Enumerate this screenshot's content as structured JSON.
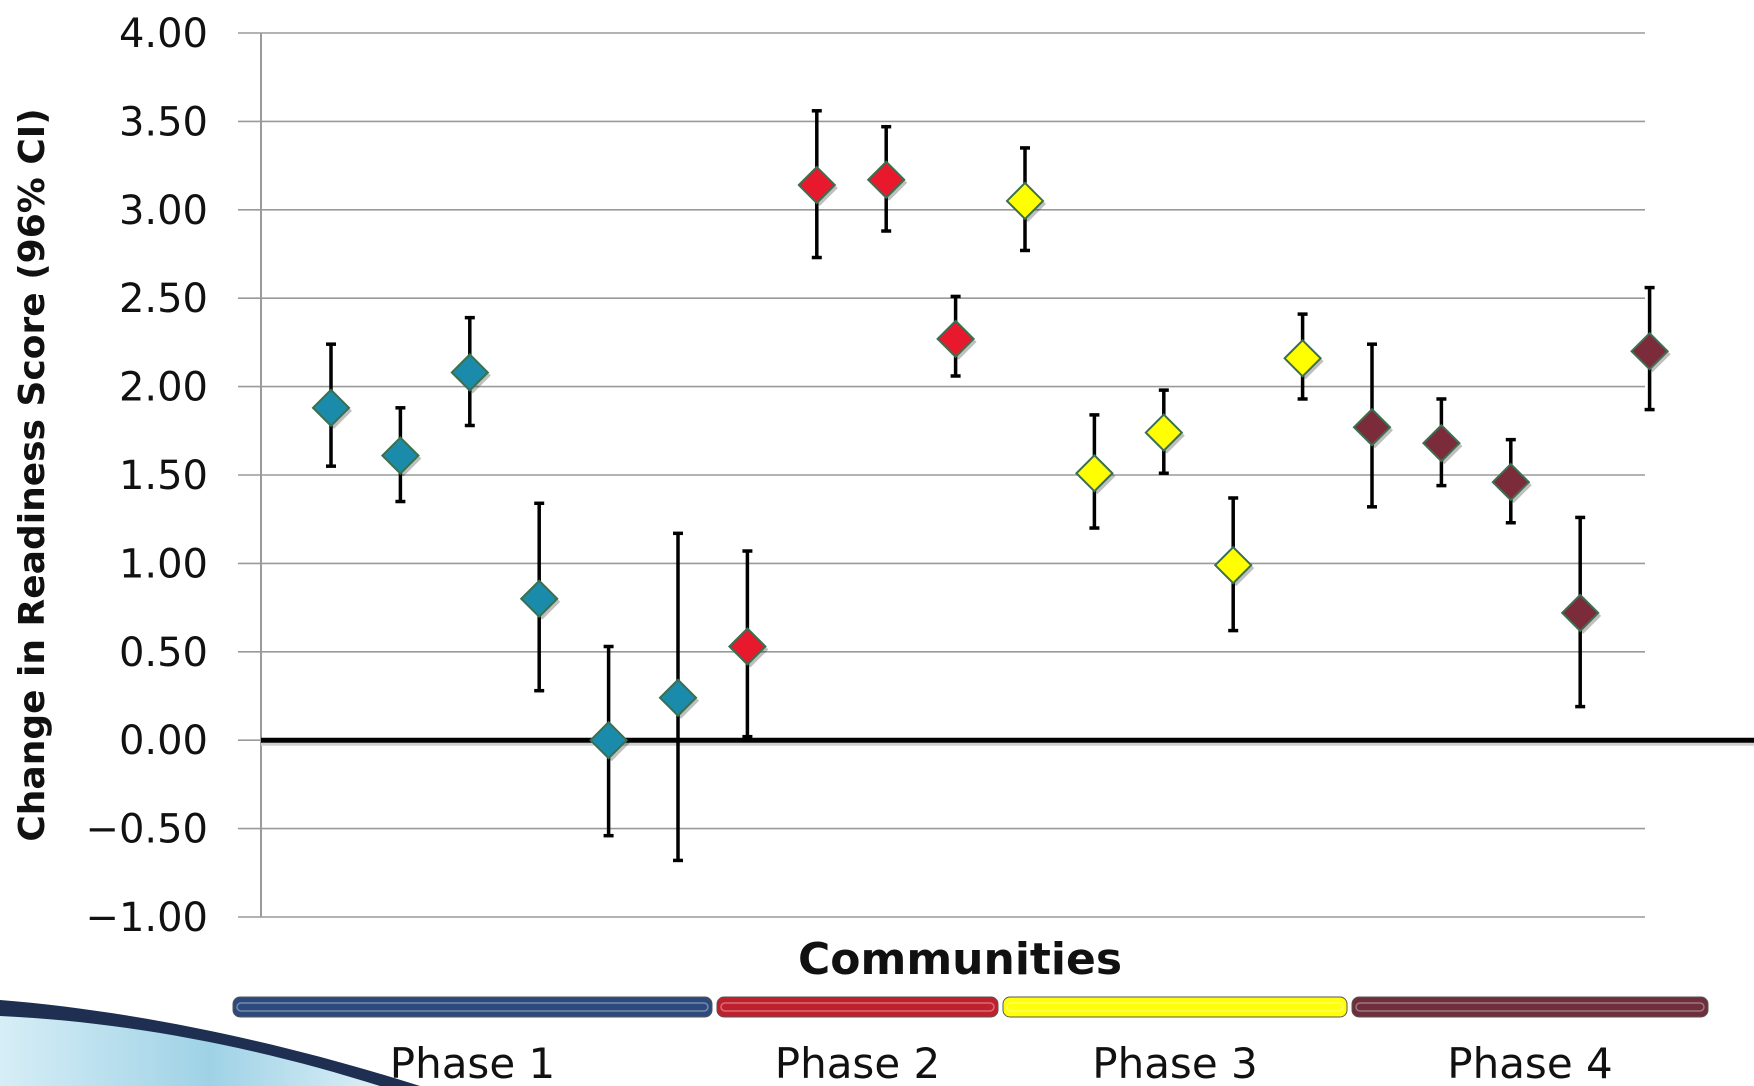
{
  "chart_data": {
    "type": "scatter",
    "xlabel": "Communities",
    "ylabel": "Change in Readiness Score (96% CI)",
    "ylim": [
      -1.0,
      4.0
    ],
    "yticks": [
      "4.00",
      "3.50",
      "3.00",
      "2.50",
      "2.00",
      "1.50",
      "1.00",
      "0.50",
      "0.00",
      "−0.50",
      "−1.00"
    ],
    "ytick_values": [
      4.0,
      3.5,
      3.0,
      2.5,
      2.0,
      1.5,
      1.0,
      0.5,
      0.0,
      -0.5,
      -1.0
    ],
    "grid": true,
    "reference_line": 0.0,
    "series": [
      {
        "name": "Phase 1",
        "color": "#1b8bab",
        "points": [
          {
            "x": 1,
            "y": 1.88,
            "low": 1.55,
            "high": 2.24
          },
          {
            "x": 2,
            "y": 1.61,
            "low": 1.35,
            "high": 1.88
          },
          {
            "x": 3,
            "y": 2.08,
            "low": 1.78,
            "high": 2.39
          },
          {
            "x": 4,
            "y": 0.8,
            "low": 0.28,
            "high": 1.34
          },
          {
            "x": 5,
            "y": 0.0,
            "low": -0.54,
            "high": 0.53
          },
          {
            "x": 6,
            "y": 0.24,
            "low": -0.68,
            "high": 1.17
          }
        ]
      },
      {
        "name": "Phase 2",
        "color": "#e8192c",
        "points": [
          {
            "x": 7,
            "y": 0.53,
            "low": 0.02,
            "high": 1.07
          },
          {
            "x": 8,
            "y": 3.14,
            "low": 2.73,
            "high": 3.56
          },
          {
            "x": 9,
            "y": 3.17,
            "low": 2.88,
            "high": 3.47
          },
          {
            "x": 10,
            "y": 2.27,
            "low": 2.06,
            "high": 2.51
          }
        ]
      },
      {
        "name": "Phase 3",
        "color": "#ffff00",
        "points": [
          {
            "x": 11,
            "y": 3.05,
            "low": 2.77,
            "high": 3.35
          },
          {
            "x": 12,
            "y": 1.51,
            "low": 1.2,
            "high": 1.84
          },
          {
            "x": 13,
            "y": 1.74,
            "low": 1.51,
            "high": 1.98
          },
          {
            "x": 14,
            "y": 0.99,
            "low": 0.62,
            "high": 1.37
          },
          {
            "x": 15,
            "y": 2.16,
            "low": 1.93,
            "high": 2.41
          }
        ]
      },
      {
        "name": "Phase 4",
        "color": "#7b2b3a",
        "points": [
          {
            "x": 16,
            "y": 1.77,
            "low": 1.32,
            "high": 2.24
          },
          {
            "x": 17,
            "y": 1.68,
            "low": 1.44,
            "high": 1.93
          },
          {
            "x": 18,
            "y": 1.46,
            "low": 1.23,
            "high": 1.7
          },
          {
            "x": 19,
            "y": 0.72,
            "low": 0.19,
            "high": 1.26
          },
          {
            "x": 20,
            "y": 2.2,
            "low": 1.87,
            "high": 2.56
          }
        ]
      }
    ]
  },
  "phases": [
    {
      "label": "Phase 1",
      "color": "#2d4a7c"
    },
    {
      "label": "Phase 2",
      "color": "#c0202e"
    },
    {
      "label": "Phase 3",
      "color": "#ffff0a"
    },
    {
      "label": "Phase 4",
      "color": "#6e2e3c"
    }
  ]
}
